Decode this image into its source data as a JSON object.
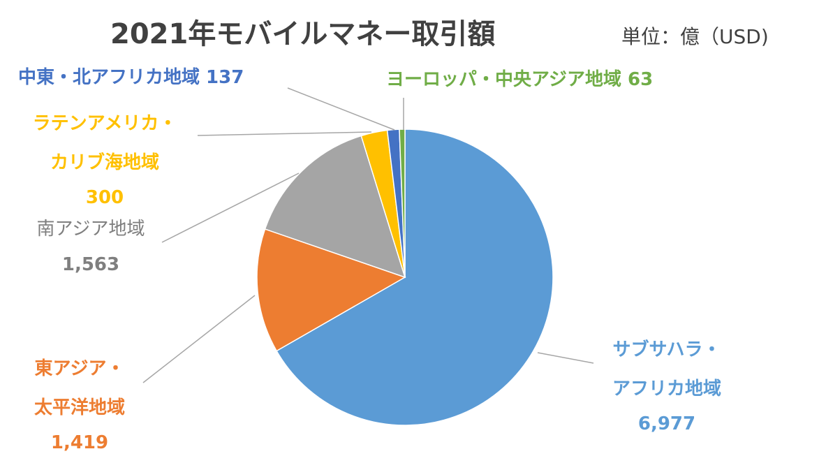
{
  "chart_data": {
    "type": "pie",
    "title": "2021年モバイルマネー取引額",
    "subtitle": "単位：億（USD)",
    "total_label": "",
    "start_angle_deg": 0,
    "direction": "clockwise",
    "slices": [
      {
        "name": "サブサハラ・アフリカ地域",
        "value": 6977,
        "value_label": "6,977",
        "color": "#5B9BD5",
        "name_lines": [
          "サブサハラ・",
          "アフリカ地域"
        ]
      },
      {
        "name": "東アジア・太平洋地域",
        "value": 1419,
        "value_label": "1,419",
        "color": "#ED7D31",
        "name_lines": [
          "東アジア・",
          "太平洋地域"
        ]
      },
      {
        "name": "南アジア地域",
        "value": 1563,
        "value_label": "1,563",
        "color": "#A5A5A5",
        "name_lines": [
          "南アジア地域"
        ]
      },
      {
        "name": "ラテンアメリカ・カリブ海地域",
        "value": 300,
        "value_label": "300",
        "color": "#FFC000",
        "name_lines": [
          "ラテンアメリカ・",
          "カリブ海地域"
        ]
      },
      {
        "name": "中東・北アフリカ地域",
        "value": 137,
        "value_label": "137",
        "color": "#4472C4",
        "name_lines": [
          "中東・北アフリカ地域"
        ]
      },
      {
        "name": "ヨーロッパ・中央アジア地域",
        "value": 63,
        "value_label": "63",
        "color": "#70AD47",
        "name_lines": [
          "ヨーロッパ・中央アジア地域"
        ]
      }
    ]
  }
}
